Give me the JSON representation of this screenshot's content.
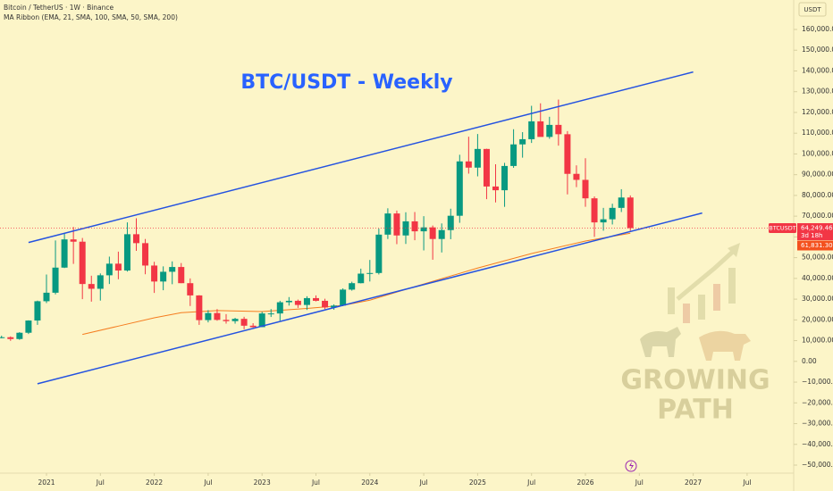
{
  "header": {
    "symbol_line": "Bitcoin / TetherUS · 1W · Binance",
    "indicator_line": "MA Ribbon (EMA, 21, SMA, 100, SMA, 50, SMA, 200)",
    "currency_button": "USDT"
  },
  "watermark": [
    "GROWING",
    "PATH"
  ],
  "chart_data": {
    "type": "candlestick",
    "title": "BTC/USDT - Weekly",
    "x": [
      "2020-08",
      "2020-09",
      "2020-10",
      "2020-11",
      "2020-12",
      "2021-01",
      "2021-02",
      "2021-03",
      "2021-04",
      "2021-05",
      "2021-06",
      "2021-07",
      "2021-08",
      "2021-09",
      "2021-10",
      "2021-11",
      "2021-12",
      "2022-01",
      "2022-02",
      "2022-03",
      "2022-04",
      "2022-05",
      "2022-06",
      "2022-07",
      "2022-08",
      "2022-09",
      "2022-10",
      "2022-11",
      "2022-12",
      "2023-01",
      "2023-02",
      "2023-03",
      "2023-04",
      "2023-05",
      "2023-06",
      "2023-07",
      "2023-08",
      "2023-09",
      "2023-10",
      "2023-11",
      "2023-12",
      "2024-01",
      "2024-02",
      "2024-03",
      "2024-04",
      "2024-05",
      "2024-06",
      "2024-07",
      "2024-08",
      "2024-09",
      "2024-10",
      "2024-11",
      "2024-12",
      "2025-01",
      "2025-02",
      "2025-03",
      "2025-04",
      "2025-05",
      "2025-06",
      "2025-07",
      "2025-08",
      "2025-09",
      "2025-10",
      "2025-11",
      "2025-12",
      "2026-01",
      "2026-02",
      "2026-03",
      "2026-04",
      "2026-05",
      "2026-06"
    ],
    "open": [
      11300,
      11650,
      10780,
      13800,
      19700,
      29000,
      33100,
      45200,
      58800,
      57700,
      37300,
      35000,
      41500,
      47100,
      43800,
      61300,
      57000,
      46200,
      38500,
      43200,
      45500,
      37700,
      31800,
      19900,
      23300,
      20000,
      19400,
      20500,
      17200,
      16500,
      23100,
      23100,
      28500,
      29200,
      27200,
      30500,
      29200,
      26000,
      26900,
      34600,
      37700,
      42300,
      42600,
      61100,
      71300,
      60700,
      67500,
      62700,
      64600,
      59000,
      63300,
      70200,
      96400,
      93400,
      102400,
      84300,
      82500,
      94200,
      104600,
      107100,
      115700,
      108200,
      114000,
      109500,
      90400,
      87500,
      78600,
      67000,
      68500,
      74000,
      79000
    ],
    "high": [
      12400,
      12050,
      14100,
      19800,
      29300,
      41900,
      58300,
      61800,
      64800,
      59500,
      41300,
      42400,
      50500,
      52900,
      67000,
      69000,
      59000,
      48000,
      45800,
      48200,
      47400,
      40000,
      31900,
      24700,
      25200,
      22800,
      21000,
      21500,
      18400,
      23900,
      25200,
      29200,
      31000,
      29800,
      31400,
      31800,
      30200,
      27500,
      35200,
      38400,
      44700,
      48900,
      64000,
      73800,
      72700,
      71900,
      72000,
      70000,
      65500,
      66500,
      73600,
      99600,
      108300,
      109600,
      102500,
      95000,
      95700,
      111900,
      110500,
      123200,
      124400,
      117900,
      126200,
      111000,
      94500,
      97900,
      79500,
      74000,
      76000,
      83000,
      80000
    ],
    "low": [
      11100,
      9900,
      10400,
      13200,
      17600,
      28100,
      32300,
      45000,
      47000,
      30000,
      28800,
      29300,
      37300,
      39600,
      43300,
      53300,
      42000,
      33000,
      34300,
      37200,
      37700,
      26700,
      17600,
      18800,
      19600,
      18200,
      18200,
      15500,
      16300,
      16500,
      21400,
      19600,
      26900,
      25800,
      24800,
      28900,
      25200,
      24900,
      26600,
      34100,
      37600,
      38500,
      41900,
      59000,
      56500,
      56600,
      58400,
      53500,
      49000,
      52500,
      58900,
      66800,
      90500,
      89200,
      78200,
      76600,
      74500,
      93300,
      98200,
      105300,
      108700,
      107300,
      104000,
      80500,
      84000,
      74500,
      60000,
      63000,
      66000,
      72000,
      63000
    ],
    "close": [
      11650,
      10780,
      13800,
      19700,
      29000,
      33100,
      45200,
      58800,
      57700,
      37300,
      35000,
      41500,
      47100,
      43800,
      61300,
      57000,
      46200,
      38500,
      43200,
      45500,
      37700,
      31800,
      19900,
      23300,
      20000,
      19400,
      20500,
      17200,
      16500,
      23100,
      23100,
      28500,
      29200,
      27200,
      30500,
      29200,
      26000,
      26900,
      34600,
      37700,
      42300,
      42600,
      61100,
      71300,
      60700,
      67500,
      62700,
      64600,
      59000,
      63300,
      70200,
      96400,
      93400,
      102400,
      84300,
      82500,
      94200,
      104600,
      107100,
      115700,
      108200,
      114000,
      109500,
      90400,
      87500,
      78600,
      67000,
      68500,
      74000,
      79000,
      64249.46
    ],
    "up_color": "#089981",
    "down_color": "#f23645",
    "ma_x": [
      "2021-05",
      "2021-09",
      "2022-01",
      "2022-04",
      "2022-08",
      "2023-01",
      "2023-06",
      "2023-10",
      "2024-01",
      "2024-06",
      "2025-01",
      "2025-07",
      "2026-01",
      "2026-06"
    ],
    "ma_values": [
      13000,
      17000,
      21000,
      23500,
      24500,
      24000,
      25500,
      27000,
      29500,
      36000,
      45000,
      52000,
      58000,
      61800
    ],
    "ma_color": "#f57c1f",
    "trendlines": [
      {
        "x": [
          "2020-11",
          "2027-01"
        ],
        "y": [
          57300,
          139500
        ]
      },
      {
        "x": [
          "2020-12",
          "2027-02"
        ],
        "y": [
          -10800,
          71500
        ]
      }
    ],
    "trendline_color": "#2452e0",
    "ylim": [
      -55000,
      166000
    ],
    "yticks": [
      {
        "value": 160000,
        "label": "160,000.00"
      },
      {
        "value": 150000,
        "label": "150,000.00"
      },
      {
        "value": 140000,
        "label": "140,000.00"
      },
      {
        "value": 130000,
        "label": "130,000.00"
      },
      {
        "value": 120000,
        "label": "120,000.00"
      },
      {
        "value": 110000,
        "label": "110,000.00"
      },
      {
        "value": 100000,
        "label": "100,000.00"
      },
      {
        "value": 90000,
        "label": "90,000.00"
      },
      {
        "value": 80000,
        "label": "80,000.00"
      },
      {
        "value": 70000,
        "label": "70,000.00"
      },
      {
        "value": 60000,
        "label": "60,000.00"
      },
      {
        "value": 50000,
        "label": "50,000.00"
      },
      {
        "value": 40000,
        "label": "40,000.00"
      },
      {
        "value": 30000,
        "label": "30,000.00"
      },
      {
        "value": 20000,
        "label": "20,000.00"
      },
      {
        "value": 10000,
        "label": "10,000.00"
      },
      {
        "value": 0,
        "label": "0.00"
      },
      {
        "value": -10000,
        "label": "−10,000.00"
      },
      {
        "value": -20000,
        "label": "−20,000.00"
      },
      {
        "value": -30000,
        "label": "−30,000.00"
      },
      {
        "value": -40000,
        "label": "−40,000.00"
      },
      {
        "value": -50000,
        "label": "−50,000.00"
      }
    ],
    "xticks": [
      {
        "value": "2021-01",
        "label": "2021"
      },
      {
        "value": "2021-07",
        "label": "Jul"
      },
      {
        "value": "2022-01",
        "label": "2022"
      },
      {
        "value": "2022-07",
        "label": "Jul"
      },
      {
        "value": "2023-01",
        "label": "2023"
      },
      {
        "value": "2023-07",
        "label": "Jul"
      },
      {
        "value": "2024-01",
        "label": "2024"
      },
      {
        "value": "2024-07",
        "label": "Jul"
      },
      {
        "value": "2025-01",
        "label": "2025"
      },
      {
        "value": "2025-07",
        "label": "Jul"
      },
      {
        "value": "2026-01",
        "label": "2026"
      },
      {
        "value": "2026-07",
        "label": "Jul"
      },
      {
        "value": "2027-01",
        "label": "2027"
      },
      {
        "value": "2027-07",
        "label": "Jul"
      }
    ],
    "price_labels": {
      "symbol": "BTCUSDT",
      "last": {
        "value": 64249.46,
        "label": "64,249.46"
      },
      "countdown": "3d 18h",
      "ma": {
        "value": 61831.3,
        "label": "61,831.30"
      }
    }
  }
}
